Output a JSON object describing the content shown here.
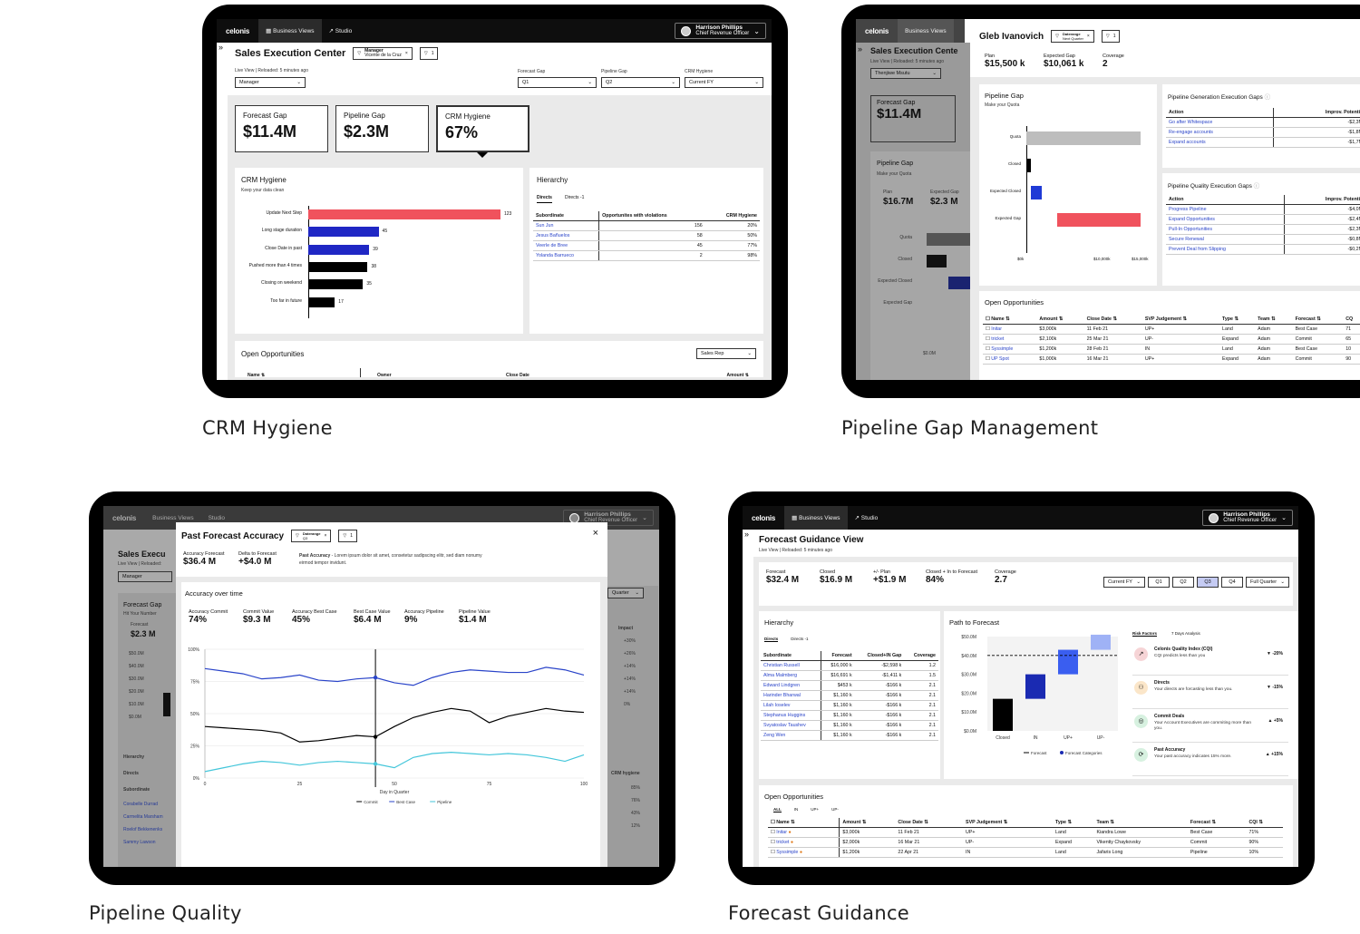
{
  "captions": {
    "crm": "CRM Hygiene",
    "pipeline_gap": "Pipeline Gap Management",
    "pipeline_quality": "Pipeline Quality",
    "forecast_guidance": "Forecast Guidance"
  },
  "app": {
    "logo": "celonis",
    "tab_business_views": "Business Views",
    "tab_studio": "Studio",
    "user_name": "Harrison Phillips",
    "user_role": "Chief Revenue Officer",
    "rail_icon": "»"
  },
  "crm": {
    "title": "Sales Execution Center",
    "filter_label": "Manager",
    "filter_value": "Vicente de la Cruz",
    "filter_count": "1",
    "subtitle": "Live View | Reloaded: 5 minutes ago",
    "manager_select": "Manager",
    "forecast_gap_label": "Forecast Gap",
    "forecast_gap_select": "Q1",
    "pipeline_gap_label": "Pipeline Gap",
    "pipeline_gap_select": "Q2",
    "crm_hygiene_label": "CRM Hygiene",
    "crm_hygiene_select": "Current FY",
    "cards": [
      {
        "label": "Forecast Gap",
        "value": "$11.4M"
      },
      {
        "label": "Pipeline Gap",
        "value": "$2.3M"
      },
      {
        "label": "CRM Hygiene",
        "value": "67%"
      }
    ],
    "chart_title": "CRM Hygiene",
    "chart_subtitle": "Keep your data clean",
    "hierarchy_title": "Hierarchy",
    "tab_directs": "Directs",
    "tab_directs_minus": "Directs -1",
    "table_headers": [
      "Subordinate",
      "Opportunites with violations",
      "CRM Hygiene"
    ],
    "table_rows": [
      [
        "Sun Jun",
        "156",
        "20%"
      ],
      [
        "Jesus Bañuelos",
        "58",
        "50%"
      ],
      [
        "Veerle de Bree",
        "45",
        "77%"
      ],
      [
        "Yolanda Barrueco",
        "2",
        "98%"
      ]
    ],
    "open_opps_title": "Open Opportunities",
    "open_opps_select": "Sales Rep",
    "opps_headers": [
      "Name",
      "Owner",
      "Close Date",
      "Amount"
    ]
  },
  "chart_data": [
    {
      "type": "bar",
      "orientation": "horizontal",
      "title": "CRM Hygiene",
      "categories": [
        "Update Next Step",
        "Long stage duration",
        "Close Date in past",
        "Pushed more than 4 times",
        "Closing on weekend",
        "Too far in future"
      ],
      "values": [
        123,
        45,
        39,
        38,
        35,
        17
      ],
      "colors": [
        "#f0525d",
        "#1f27c4",
        "#1f27c4",
        "#000000",
        "#000000",
        "#000000"
      ]
    },
    {
      "type": "bar",
      "orientation": "horizontal",
      "title": "Pipeline Gap",
      "categories": [
        "Quota",
        "Closed",
        "Expected Closed",
        "Expected Gap"
      ],
      "values": [
        15000,
        600,
        1400,
        11000
      ],
      "xlim": [
        0,
        15000
      ],
      "ticks": [
        "$0k",
        "$10,000k",
        "$15,000k"
      ]
    },
    {
      "type": "line",
      "title": "Accuracy over time",
      "xlabel": "Day in Quarter",
      "x": [
        0,
        5,
        10,
        15,
        20,
        25,
        30,
        35,
        40,
        45,
        50,
        55,
        60,
        65,
        70,
        75,
        80,
        85,
        90,
        95,
        100
      ],
      "xlim": [
        0,
        100
      ],
      "ylim": [
        0,
        100
      ],
      "yticks": [
        "0%",
        "25%",
        "50%",
        "75%",
        "100%"
      ],
      "series": [
        {
          "name": "Commit",
          "color": "#000000",
          "values": [
            40,
            39,
            38,
            37,
            35,
            28,
            29,
            31,
            33,
            32,
            40,
            47,
            51,
            54,
            52,
            43,
            48,
            51,
            54,
            52,
            51
          ]
        },
        {
          "name": "Best Case",
          "color": "#2a44c9",
          "values": [
            85,
            83,
            81,
            77,
            78,
            80,
            76,
            75,
            77,
            78,
            74,
            72,
            78,
            82,
            84,
            83,
            82,
            82,
            86,
            84,
            80
          ]
        },
        {
          "name": "Pipeline",
          "color": "#43c6da",
          "values": [
            5,
            8,
            11,
            13,
            12,
            10,
            12,
            13,
            12,
            11,
            8,
            16,
            19,
            20,
            19,
            18,
            19,
            18,
            16,
            13,
            18
          ]
        }
      ]
    },
    {
      "type": "bar",
      "title": "Path to Forecast",
      "categories": [
        "Closed",
        "IN",
        "UP+",
        "UP-"
      ],
      "ylim": [
        0,
        50
      ],
      "yticks": [
        "$0.0M",
        "$10.0M",
        "$20.0M",
        "$30.0M",
        "$40.0M",
        "$50.0M"
      ],
      "values": [
        [
          0,
          17
        ],
        [
          17,
          30
        ],
        [
          30,
          43
        ],
        [
          43,
          51
        ]
      ],
      "forecast_line": 40
    }
  ],
  "gap": {
    "bg_title": "Sales Execution Cente",
    "bg_subtitle": "Live View | Reloaded: 5 minutes ago",
    "bg_select": "Thenjiwe Msutu",
    "bg_card_label": "Forecast Gap",
    "bg_card_value": "$11.4M",
    "bg_pipeline_title": "Pipeline Gap",
    "bg_pipeline_sub": "Make your Quota",
    "bg_plan_label": "Plan",
    "bg_plan_value": "$16.7M",
    "bg_expgap_label": "Expected Gap",
    "bg_expgap_value": "$2.3 M",
    "bg_labels": [
      "Quota",
      "Closed",
      "Expected Closed",
      "Expected Gap"
    ],
    "bg_axis": "$0.0M",
    "person": "Gleb Ivanovich",
    "filter_label": "Daterange",
    "filter_value": "Next Quarter",
    "filter_count": "1",
    "kpis": [
      {
        "label": "Plan",
        "value": "$15,500 k"
      },
      {
        "label": "Expected Gap",
        "value": "$10,061 k"
      },
      {
        "label": "Coverage",
        "value": "2"
      }
    ],
    "pipeline_title": "Pipeline Gap",
    "pipeline_sub": "Make your Quota",
    "gen_title": "Pipeline Generation Execution Gaps",
    "quality_title": "Pipeline Quality Execution Gaps",
    "gap_headers": [
      "Action",
      "Improv. Potentia"
    ],
    "gen_rows": [
      [
        "Go after Whitespace",
        "-$2,3M"
      ],
      [
        "Re-engage accounts",
        "-$1,8M"
      ],
      [
        "Expand accounts",
        "-$1,7M"
      ]
    ],
    "quality_rows": [
      [
        "Progress Pipeline",
        "-$4,0M"
      ],
      [
        "Expand Opportunities",
        "-$2,4M"
      ],
      [
        "Pull-In Opportunities",
        "-$2,3M"
      ],
      [
        "Secure Renewal",
        "-$0,8M"
      ],
      [
        "Prevent Deal from Slipping",
        "-$0,2M"
      ]
    ],
    "opps_title": "Open Opportunities",
    "opps_headers": [
      "Name",
      "Amount",
      "Close Date",
      "SVP Judgement",
      "Type",
      "Team",
      "Forecast",
      "CQ"
    ],
    "opps_rows": [
      [
        "Initar",
        "$3,000k",
        "11 Feb 21",
        "UP+",
        "Land",
        "Adam",
        "Best Case",
        "71"
      ],
      [
        "tricket",
        "$2,100k",
        "25 Mar 21",
        "UP-",
        "Expand",
        "Adam",
        "Commit",
        "65"
      ],
      [
        "Syssimple",
        "$1,200k",
        "28 Feb 21",
        "IN",
        "Land",
        "Adam",
        "Best Case",
        "10"
      ],
      [
        "UP Spot",
        "$1,000k",
        "16 Mar 21",
        "UP+",
        "Expand",
        "Adam",
        "Commit",
        "90"
      ]
    ]
  },
  "quality": {
    "bg_title": "Sales Execu",
    "bg_subtitle": "Live View | Reloaded:",
    "bg_select": "Manager",
    "bg_card": "Forecast Gap",
    "bg_card_sub": "Hit Your Number",
    "bg_forecast": "Forecast",
    "bg_forecast_val": "$2.3 M",
    "bg_yticks": [
      "$50.0M",
      "$40.0M",
      "$30.0M",
      "$20.0M",
      "$10.0M",
      "$0.0M"
    ],
    "bg_quarter": "Quarter",
    "bg_impact": "Impact",
    "bg_impacts": [
      "+30%",
      "+26%",
      "+14%",
      "+14%",
      "+14%",
      "0%"
    ],
    "bg_hierarchy": "Hierarchy",
    "bg_directs": "Directs",
    "bg_subordinate": "Subordinate",
    "bg_crm": "CRM hygiene",
    "bg_people": [
      "Corabelle Durrad",
      "Carmelita Marsham",
      "Roelof Bekkenenks",
      "Sammy Lawson"
    ],
    "bg_pcts": [
      "85%",
      "76%",
      "43%",
      "12%"
    ],
    "modal_title": "Past Forecast Accuracy",
    "filter_label": "Daterange",
    "filter_value": "Q3",
    "filter_count": "1",
    "close": "×",
    "acc_label": "Accuracy Forecast",
    "acc_value": "$36.4 M",
    "delta_label": "Delta to Forecast",
    "delta_value": "+$4.0 M",
    "desc_bold": "Past Accuracy",
    "desc": " - Lorem ipsum dolor sit amet, consetetur sadipscing elitr, sed diam nonumy eirmod tempor invidunt.",
    "over_time": "Accuracy over time",
    "kpis": [
      {
        "label": "Accuracy Commit",
        "value": "74%"
      },
      {
        "label": "Commit Value",
        "value": "$9.3 M"
      },
      {
        "label": "Accuracy Best Case",
        "value": "45%"
      },
      {
        "label": "Best Case Value",
        "value": "$6.4 M"
      },
      {
        "label": "Accuracy Pipeline",
        "value": "9%"
      },
      {
        "label": "Pipeline Value",
        "value": "$1.4 M"
      }
    ],
    "xticks": [
      "0",
      "25",
      "50",
      "75",
      "100"
    ]
  },
  "guidance": {
    "title": "Forecast Guidance View",
    "subtitle": "Live View | Reloaded: 5 minutes ago",
    "kpis": [
      {
        "label": "Forecast",
        "value": "$32.4 M"
      },
      {
        "label": "Closed",
        "value": "$16.9 M"
      },
      {
        "label": "+/- Plan",
        "value": "+$1.9 M"
      },
      {
        "label": "Closed + In to Forecast",
        "value": "84%"
      },
      {
        "label": "Coverage",
        "value": "2.7"
      }
    ],
    "fy_select": "Current FY",
    "quarters": [
      "Q1",
      "Q2",
      "Q3",
      "Q4"
    ],
    "quarter_select": "Full Quarter",
    "hierarchy": "Hierarchy",
    "tab_directs": "Directs",
    "tab_directs_minus": "Directs -1",
    "hier_headers": [
      "Subordinate",
      "Forecast",
      "Closed+IN Gap",
      "Coverage"
    ],
    "hier_rows": [
      [
        "Christian Russell",
        "$16,000 k",
        "-$2,598 k",
        "1.2"
      ],
      [
        "Alma Malmberg",
        "$16,691 k",
        "-$1,411 k",
        "1.5"
      ],
      [
        "Edward Lindgren",
        "$453 k",
        "-$166 k",
        "2.1"
      ],
      [
        "Harinder Bharwal",
        "$1,160 k",
        "-$166 k",
        "2.1"
      ],
      [
        "Lilah Ioselev",
        "$1,160 k",
        "-$166 k",
        "2.1"
      ],
      [
        "Stephanus Huggins",
        "$1,160 k",
        "-$166 k",
        "2.1"
      ],
      [
        "Svyatoslav Taushev",
        "$1,160 k",
        "-$166 k",
        "2.1"
      ],
      [
        "Zeng Wen",
        "$1,160 k",
        "-$166 k",
        "2.1"
      ]
    ],
    "path_title": "Path to Forecast",
    "legend_forecast": "Forecast",
    "legend_categories": "Forecast Categories",
    "risk_tab": "Risk Factors",
    "days_tab": "7 Days Analysis",
    "risks": [
      {
        "title": "Celonis Quality Index (CQI)",
        "desc": "CQI predicts less than you",
        "delta": "-20%",
        "dir": "down"
      },
      {
        "title": "Directs",
        "desc": "Your directs are forcasting less than you.",
        "delta": "-15%",
        "dir": "down"
      },
      {
        "title": "Commit Deals",
        "desc": "Your Account Executives are commiting more than you.",
        "delta": "+5%",
        "dir": "up"
      },
      {
        "title": "Past Accuracy",
        "desc": "Your past accuracy indicates 15% more.",
        "delta": "+15%",
        "dir": "up"
      }
    ],
    "opps_title": "Open Opportunities",
    "opps_tabs": [
      "ALL",
      "IN",
      "UP+",
      "UP-"
    ],
    "opps_headers": [
      "Name",
      "Amount",
      "Close Date",
      "SVP Judgement",
      "Type",
      "Team",
      "Forecast",
      "CQI"
    ],
    "opps_rows": [
      [
        "Initar",
        "$3,000k",
        "11 Feb 21",
        "UP+",
        "Land",
        "Kiandra Lowe",
        "Best Case",
        "71%"
      ],
      [
        "tricket",
        "$2,000k",
        "16 Mar 21",
        "UP-",
        "Expand",
        "Vikentiy Chaykovsky",
        "Commit",
        "90%"
      ],
      [
        "Syssimple",
        "$1,200k",
        "22 Apr 21",
        "IN",
        "Land",
        "Jafaris Long",
        "Pipeline",
        "10%"
      ]
    ]
  }
}
